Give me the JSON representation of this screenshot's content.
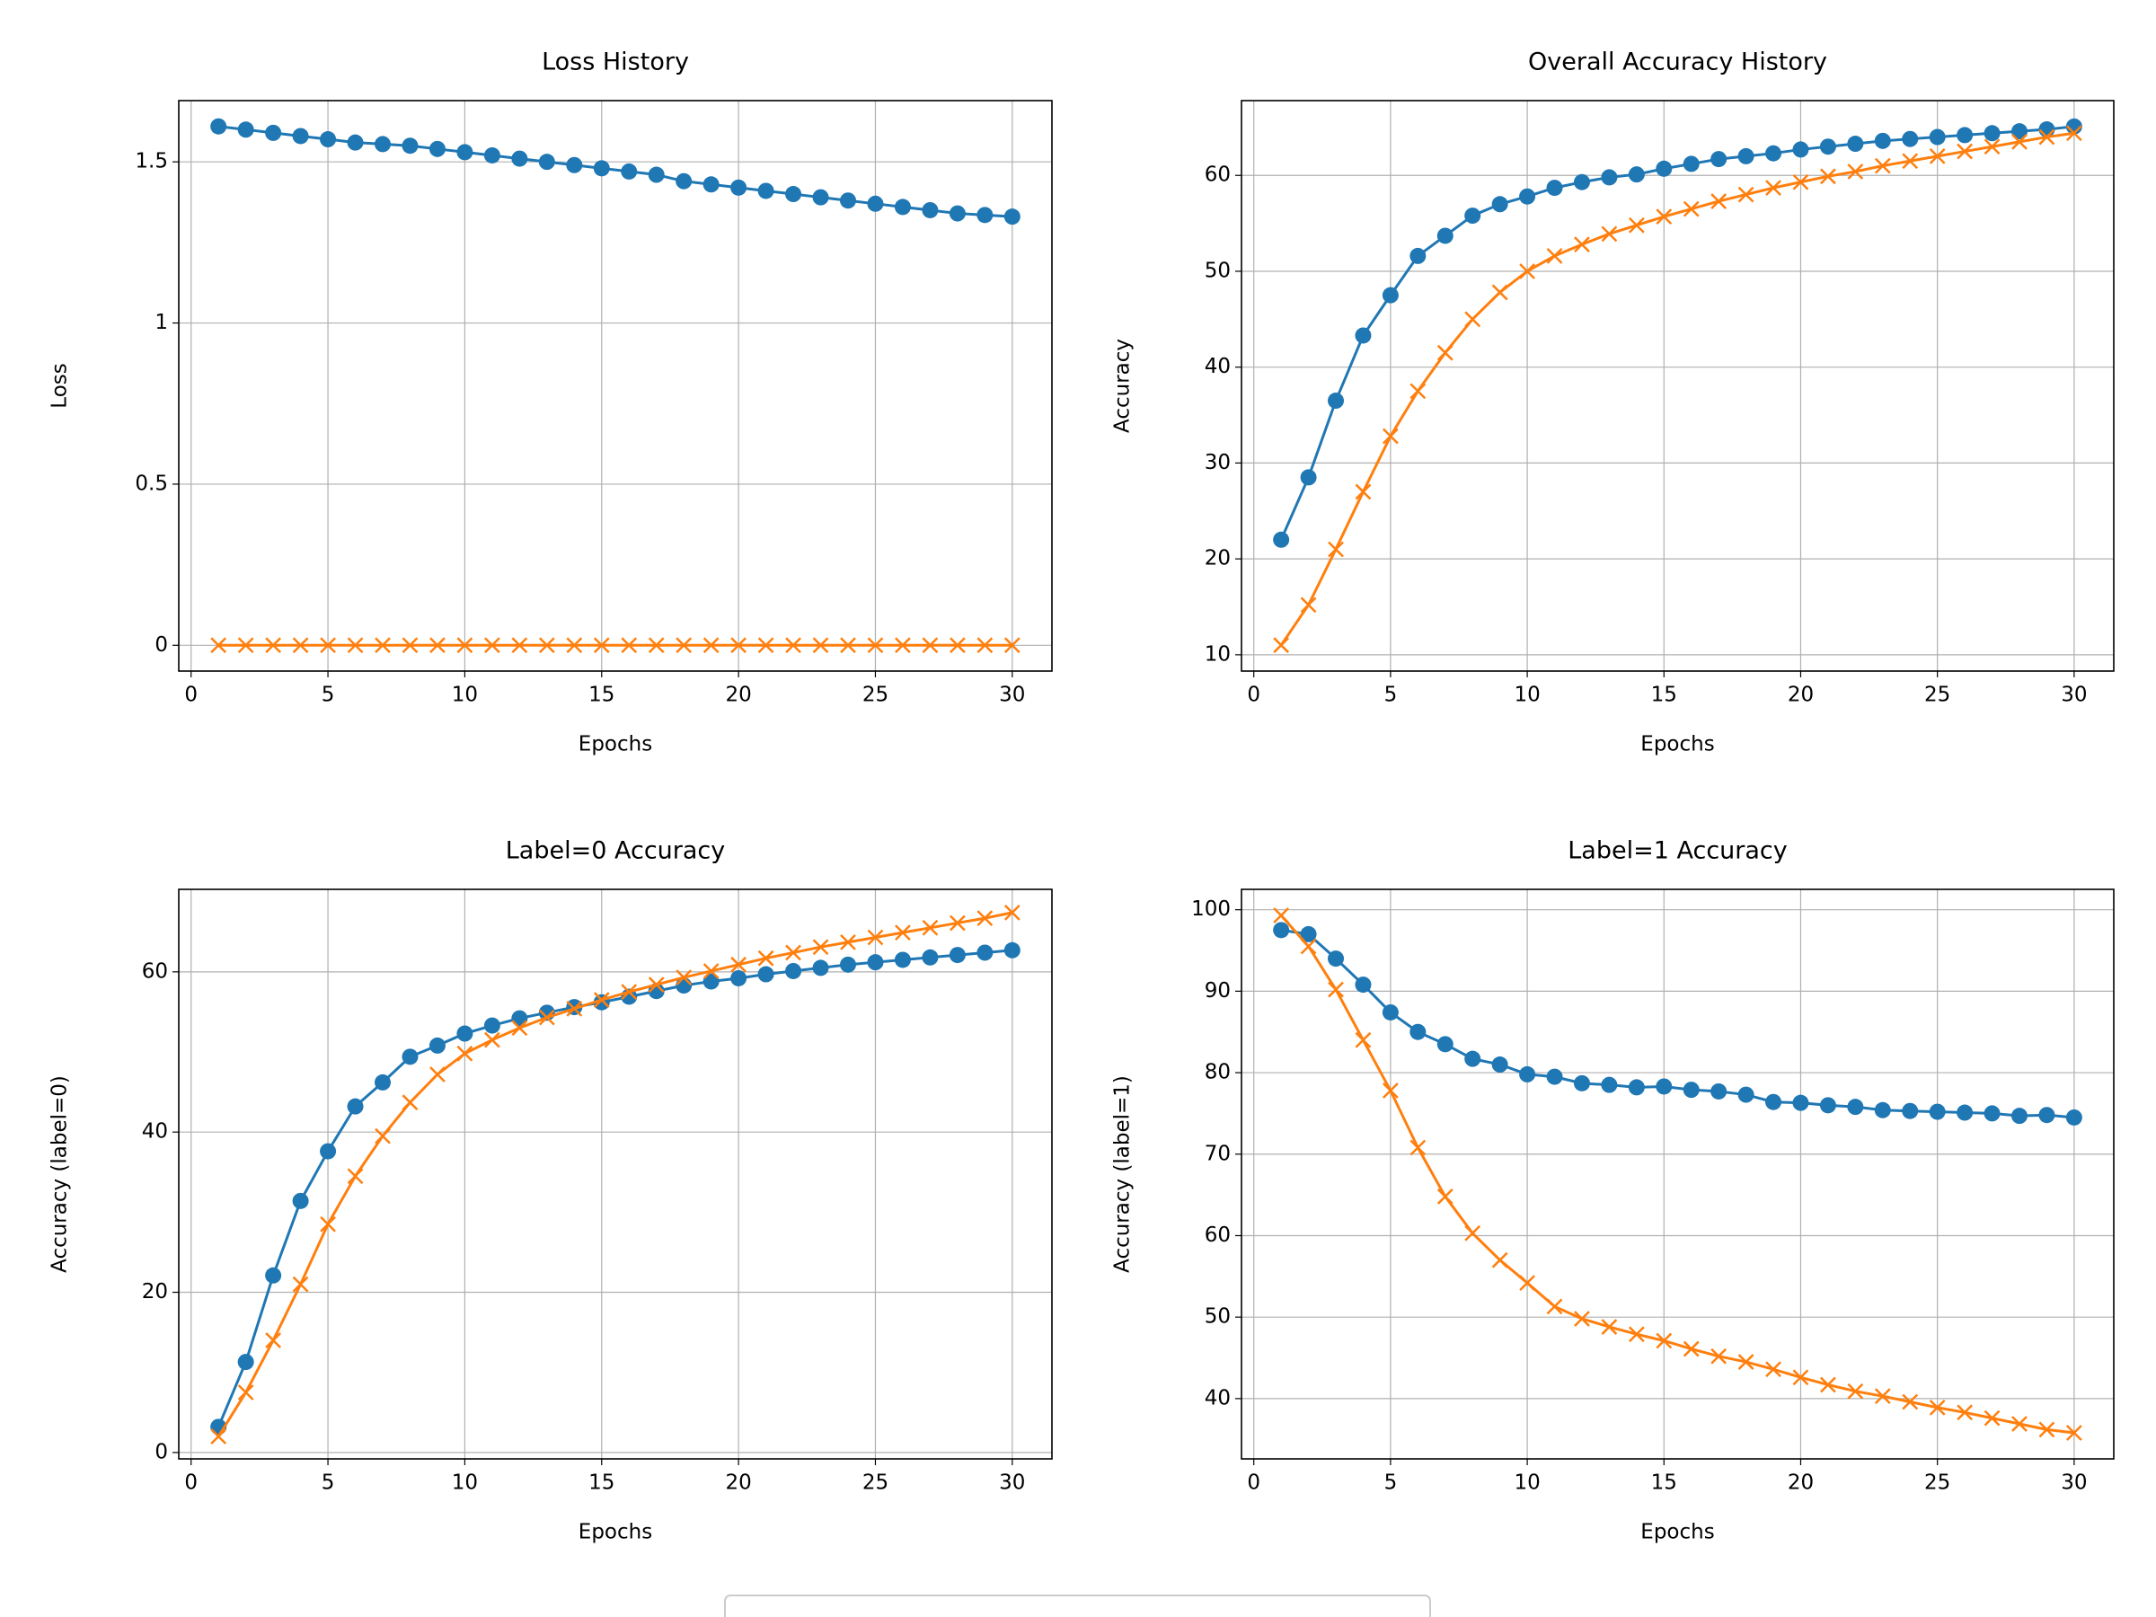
{
  "chart_data": [
    {
      "type": "line",
      "title": "Loss History",
      "x_label": "Epochs",
      "y_label": "Loss",
      "grid": true,
      "x": [
        1,
        2,
        3,
        4,
        5,
        6,
        7,
        8,
        9,
        10,
        11,
        12,
        13,
        14,
        15,
        16,
        17,
        18,
        19,
        20,
        21,
        22,
        23,
        24,
        25,
        26,
        27,
        28,
        29,
        30
      ],
      "xlim": [
        -0.45,
        31.45
      ],
      "xticks": [
        0,
        5,
        10,
        15,
        20,
        25,
        30
      ],
      "ylim": [
        -0.08,
        1.69
      ],
      "yticks": [
        0.0,
        0.5,
        1.0,
        1.5
      ],
      "series": [
        {
          "color": "#1f77b4",
          "marker": "o",
          "values": [
            1.61,
            1.6,
            1.59,
            1.58,
            1.57,
            1.56,
            1.555,
            1.55,
            1.54,
            1.53,
            1.52,
            1.51,
            1.5,
            1.49,
            1.48,
            1.47,
            1.46,
            1.44,
            1.43,
            1.42,
            1.41,
            1.4,
            1.39,
            1.38,
            1.37,
            1.36,
            1.35,
            1.34,
            1.335,
            1.33
          ]
        },
        {
          "color": "#ff7f0e",
          "marker": "x",
          "values": [
            0,
            0,
            0,
            0,
            0,
            0,
            0,
            0,
            0,
            0,
            0,
            0,
            0,
            0,
            0,
            0,
            0,
            0,
            0,
            0,
            0,
            0,
            0,
            0,
            0,
            0,
            0,
            0,
            0,
            0
          ]
        }
      ]
    },
    {
      "type": "line",
      "title": "Overall Accuracy History",
      "x_label": "Epochs",
      "y_label": "Accuracy",
      "grid": true,
      "x": [
        1,
        2,
        3,
        4,
        5,
        6,
        7,
        8,
        9,
        10,
        11,
        12,
        13,
        14,
        15,
        16,
        17,
        18,
        19,
        20,
        21,
        22,
        23,
        24,
        25,
        26,
        27,
        28,
        29,
        30
      ],
      "xlim": [
        -0.45,
        31.45
      ],
      "xticks": [
        0,
        5,
        10,
        15,
        20,
        25,
        30
      ],
      "ylim": [
        8.3,
        67.8
      ],
      "yticks": [
        10,
        20,
        30,
        40,
        50,
        60
      ],
      "series": [
        {
          "color": "#1f77b4",
          "marker": "o",
          "values": [
            22,
            28.5,
            36.5,
            43.3,
            47.5,
            51.6,
            53.7,
            55.8,
            57,
            57.8,
            58.7,
            59.3,
            59.8,
            60.1,
            60.7,
            61.2,
            61.7,
            62,
            62.3,
            62.7,
            63,
            63.3,
            63.6,
            63.8,
            64,
            64.2,
            64.4,
            64.6,
            64.8,
            65.1
          ]
        },
        {
          "color": "#ff7f0e",
          "marker": "x",
          "values": [
            11,
            15.2,
            21,
            27,
            32.8,
            37.5,
            41.5,
            45,
            47.8,
            50,
            51.6,
            52.8,
            53.9,
            54.8,
            55.7,
            56.5,
            57.3,
            58,
            58.7,
            59.3,
            59.9,
            60.4,
            61,
            61.5,
            62,
            62.5,
            63,
            63.5,
            64,
            64.4
          ]
        }
      ]
    },
    {
      "type": "line",
      "title": "Label=0 Accuracy",
      "x_label": "Epochs",
      "y_label": "Accuracy (label=0)",
      "grid": true,
      "x": [
        1,
        2,
        3,
        4,
        5,
        6,
        7,
        8,
        9,
        10,
        11,
        12,
        13,
        14,
        15,
        16,
        17,
        18,
        19,
        20,
        21,
        22,
        23,
        24,
        25,
        26,
        27,
        28,
        29,
        30
      ],
      "xlim": [
        -0.45,
        31.45
      ],
      "xticks": [
        0,
        5,
        10,
        15,
        20,
        25,
        30
      ],
      "ylim": [
        -0.8,
        70.3
      ],
      "yticks": [
        0,
        20,
        40,
        60
      ],
      "series": [
        {
          "color": "#1f77b4",
          "marker": "o",
          "values": [
            3.2,
            11.3,
            22.1,
            31.4,
            37.6,
            43.2,
            46.2,
            49.4,
            50.8,
            52.3,
            53.3,
            54.2,
            54.9,
            55.6,
            56.2,
            56.9,
            57.6,
            58.3,
            58.8,
            59.2,
            59.7,
            60.1,
            60.5,
            60.9,
            61.2,
            61.5,
            61.8,
            62.1,
            62.4,
            62.7
          ]
        },
        {
          "color": "#ff7f0e",
          "marker": "x",
          "values": [
            2,
            7.5,
            14,
            21,
            28.5,
            34.5,
            39.5,
            43.7,
            47.2,
            49.8,
            51.5,
            53,
            54.3,
            55.4,
            56.5,
            57.5,
            58.4,
            59.3,
            60.1,
            60.9,
            61.7,
            62.4,
            63.1,
            63.7,
            64.3,
            64.9,
            65.5,
            66.1,
            66.7,
            67.4
          ]
        }
      ]
    },
    {
      "type": "line",
      "title": "Label=1 Accuracy",
      "x_label": "Epochs",
      "y_label": "Accuracy (label=1)",
      "grid": true,
      "x": [
        1,
        2,
        3,
        4,
        5,
        6,
        7,
        8,
        9,
        10,
        11,
        12,
        13,
        14,
        15,
        16,
        17,
        18,
        19,
        20,
        21,
        22,
        23,
        24,
        25,
        26,
        27,
        28,
        29,
        30
      ],
      "xlim": [
        -0.45,
        31.45
      ],
      "xticks": [
        0,
        5,
        10,
        15,
        20,
        25,
        30
      ],
      "ylim": [
        32.6,
        102.5
      ],
      "yticks": [
        40,
        50,
        60,
        70,
        80,
        90,
        100
      ],
      "series": [
        {
          "color": "#1f77b4",
          "marker": "o",
          "values": [
            97.5,
            97,
            94,
            90.8,
            87.4,
            85,
            83.5,
            81.7,
            81,
            79.8,
            79.5,
            78.7,
            78.5,
            78.2,
            78.3,
            77.9,
            77.7,
            77.3,
            76.4,
            76.3,
            76,
            75.8,
            75.4,
            75.3,
            75.2,
            75.1,
            75,
            74.7,
            74.8,
            74.5
          ]
        },
        {
          "color": "#ff7f0e",
          "marker": "x",
          "values": [
            99.3,
            95.5,
            90.2,
            84,
            77.8,
            70.8,
            64.8,
            60.3,
            57,
            54.2,
            51.3,
            49.8,
            48.8,
            47.9,
            47.1,
            46.1,
            45.2,
            44.5,
            43.6,
            42.6,
            41.7,
            40.9,
            40.3,
            39.6,
            38.9,
            38.3,
            37.6,
            36.9,
            36.2,
            35.8
          ]
        }
      ]
    }
  ]
}
